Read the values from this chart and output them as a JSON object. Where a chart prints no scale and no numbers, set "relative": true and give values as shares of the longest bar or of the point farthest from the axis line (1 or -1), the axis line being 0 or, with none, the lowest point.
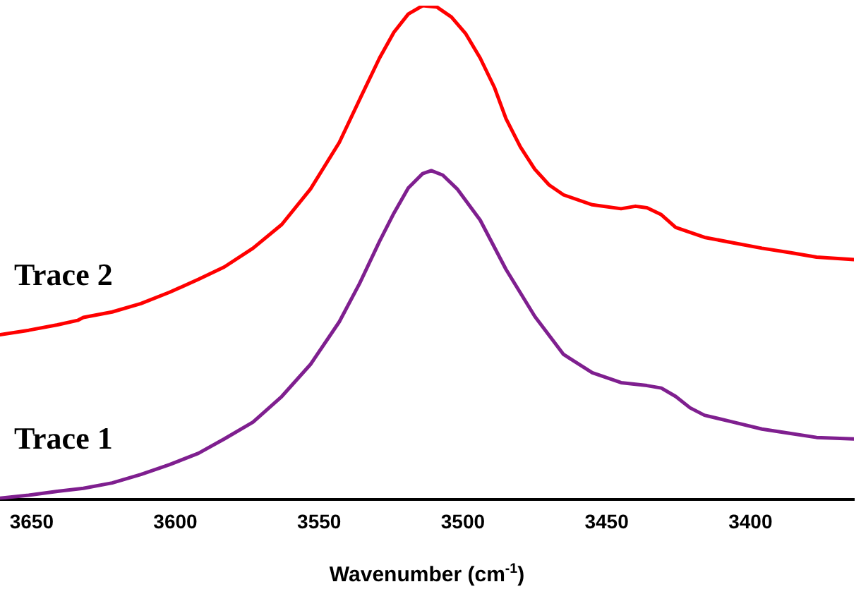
{
  "chart_data": {
    "type": "line",
    "xlabel": "Wavenumber (cm$^{-1}$)",
    "relative": true,
    "xlim": [
      3661,
      3364
    ],
    "xticks": [
      3650,
      3600,
      3550,
      3500,
      3450,
      3400
    ],
    "grid": false,
    "legend": false,
    "marker": "none",
    "line_style": "solid",
    "series": [
      {
        "name": "Trace 2",
        "color": "#ff0000",
        "x": [
          3661,
          3651,
          3641,
          3634,
          3632,
          3622,
          3612,
          3602,
          3592,
          3583,
          3573,
          3563,
          3553,
          3543,
          3536,
          3529,
          3524,
          3519,
          3514,
          3509,
          3504,
          3499,
          3494,
          3489,
          3485,
          3480,
          3475,
          3470,
          3465,
          3455,
          3445,
          3440,
          3436,
          3431,
          3426,
          3416,
          3406,
          3396,
          3386,
          3377,
          3364
        ],
        "values": [
          0.334,
          0.343,
          0.354,
          0.363,
          0.369,
          0.38,
          0.397,
          0.42,
          0.446,
          0.471,
          0.509,
          0.557,
          0.629,
          0.723,
          0.809,
          0.894,
          0.946,
          0.983,
          1,
          0.997,
          0.977,
          0.943,
          0.894,
          0.834,
          0.771,
          0.714,
          0.669,
          0.637,
          0.617,
          0.597,
          0.589,
          0.594,
          0.591,
          0.577,
          0.551,
          0.531,
          0.52,
          0.509,
          0.5,
          0.491,
          0.486
        ]
      },
      {
        "name": "Trace 1",
        "color": "#7f1f8f",
        "x": [
          3661,
          3651,
          3641,
          3632,
          3622,
          3612,
          3602,
          3592,
          3583,
          3573,
          3563,
          3553,
          3543,
          3536,
          3529,
          3524,
          3519,
          3514,
          3511,
          3507,
          3502,
          3494,
          3485,
          3475,
          3465,
          3455,
          3445,
          3436,
          3431,
          3426,
          3421,
          3416,
          3406,
          3396,
          3386,
          3377,
          3364
        ],
        "values": [
          0.003,
          0.009,
          0.017,
          0.023,
          0.034,
          0.051,
          0.071,
          0.094,
          0.123,
          0.157,
          0.209,
          0.274,
          0.36,
          0.437,
          0.523,
          0.58,
          0.631,
          0.66,
          0.666,
          0.657,
          0.629,
          0.566,
          0.466,
          0.371,
          0.294,
          0.257,
          0.237,
          0.231,
          0.226,
          0.209,
          0.186,
          0.171,
          0.157,
          0.143,
          0.134,
          0.126,
          0.123
        ]
      }
    ]
  }
}
